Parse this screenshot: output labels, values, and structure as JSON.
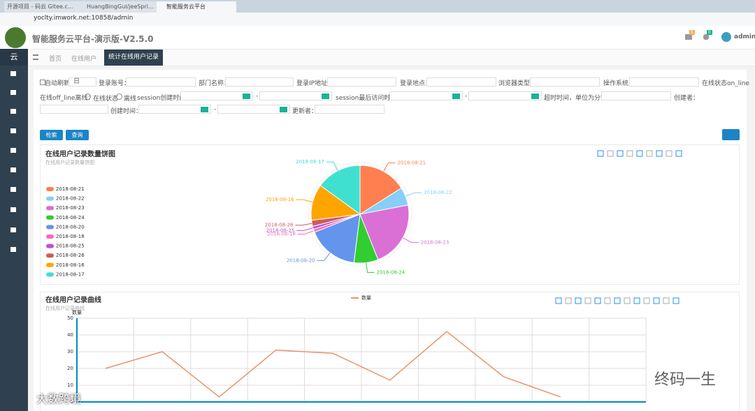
{
  "browser": {
    "tabs": [
      "开源项目 - 码云 Gitee.c...",
      "HuangBingGui/jeeSpri...",
      "智能服务云平台"
    ],
    "url": "yoclty.imwork.net:10858/admin"
  },
  "header": {
    "title": "智能服务云平台-演示版-V2.5.0",
    "badges": [
      "5",
      "0"
    ],
    "user": "admin"
  },
  "sidebar": {
    "logo": "云"
  },
  "tabs": [
    "首页",
    "在线用户",
    "统计在线用户记录"
  ],
  "form": {
    "auto_refresh": "自动刷新",
    "period": "日",
    "login_account": "登录账号：",
    "department": "部门名称：",
    "login_ip": "登录IP地址：",
    "login_location": "登录地点：",
    "browser_type": "浏览器类型：",
    "os": "操作系统：",
    "online_status": "在线状态on_line",
    "offline": "在线off_line离线：",
    "radio_online": "在线状态",
    "radio_offline": "离线",
    "session_created": "session创建时间：",
    "range_sep": "-",
    "session_last": "session最后访问时间：",
    "timeout": "超时时间，单位为分钟：",
    "creator": "创建者：",
    "created": "创建时间：",
    "updater": "更新者："
  },
  "buttons": [
    "检索",
    "查询"
  ],
  "chart_data": [
    {
      "type": "pie",
      "title": "在线用户记录数量饼图",
      "subtitle": "在线用户记录数量饼图",
      "categories": [
        "2018-08-21",
        "2018-08-22",
        "2018-08-23",
        "2018-08-24",
        "2018-08-20",
        "2018-08-18",
        "2018-08-25",
        "2018-08-26",
        "2018-08-16",
        "2018-08-17"
      ],
      "values": [
        16,
        6,
        22,
        8,
        17,
        1,
        1,
        2,
        12,
        15
      ],
      "colors": [
        "#ff7f50",
        "#87cefa",
        "#da70d6",
        "#32cd32",
        "#6495ed",
        "#ff69b4",
        "#ba55d3",
        "#cd5c5c",
        "#ffa500",
        "#40e0d0"
      ],
      "legend": "left"
    },
    {
      "type": "line",
      "title": "在线用户记录曲线",
      "subtitle": "在线用户记录曲线",
      "y_axis_label": "数量",
      "categories": [
        null,
        null,
        null,
        null,
        null,
        null,
        null,
        null,
        null,
        null
      ],
      "series": [
        {
          "name": "数量",
          "color": "#e9946a",
          "values": [
            20,
            30,
            3,
            31,
            29,
            13,
            42,
            15,
            3,
            null
          ]
        }
      ],
      "ylim": [
        0,
        50
      ],
      "yticks": [
        0,
        10,
        20,
        30,
        40,
        50
      ],
      "grid": true
    }
  ],
  "watermark": [
    "终码一生",
    "大数跨境"
  ]
}
